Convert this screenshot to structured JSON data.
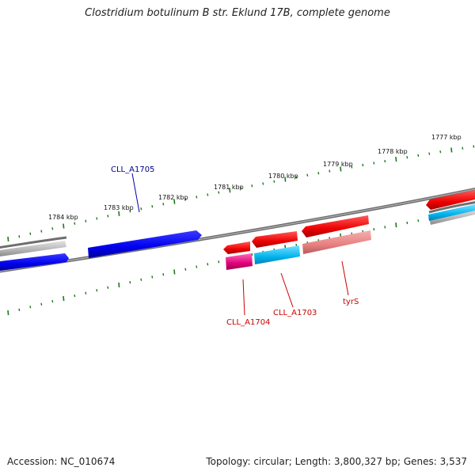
{
  "header": {
    "title": "Clostridium botulinum B str. Eklund 17B, complete genome"
  },
  "footer": {
    "accession": "Accession: NC_010674",
    "summary": "Topology: circular; Length: 3,800,327 bp; Genes: 3,537"
  },
  "genome_map": {
    "ruler_labels": [
      "1784 kbp",
      "1783 kbp",
      "1782 kbp",
      "1781 kbp",
      "1780 kbp",
      "1779 kbp",
      "1778 kbp",
      "1777 kbp"
    ],
    "gene_labels": {
      "cll_a1705": "CLL_A1705",
      "cll_a1704": "CLL_A1704",
      "cll_a1703": "CLL_A1703",
      "tyrs": "tyrS"
    },
    "colors": {
      "forward_cds": "#0000ee",
      "reverse_cds": "#ee0000",
      "rna": "#e0007a",
      "cyan_feature": "#00b4ee",
      "pseudo_pink": "#e88080",
      "gray_feature": "#a8a8a8",
      "backbone": "#777777",
      "ruler_tick": "#1a7a1a",
      "label_forward": "#00008b",
      "label_reverse": "#cc0000"
    }
  }
}
